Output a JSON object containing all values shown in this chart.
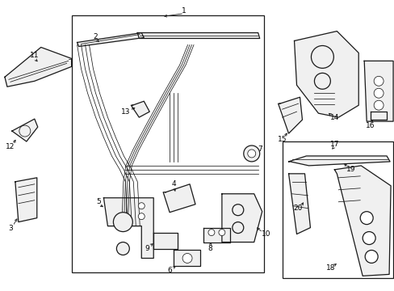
{
  "bg_color": "#ffffff",
  "line_color": "#1a1a1a",
  "label_color": "#000000",
  "fig_width": 4.89,
  "fig_height": 3.6,
  "dpi": 100,
  "lw_main": 0.9,
  "lw_thin": 0.55,
  "label_fs": 6.5
}
